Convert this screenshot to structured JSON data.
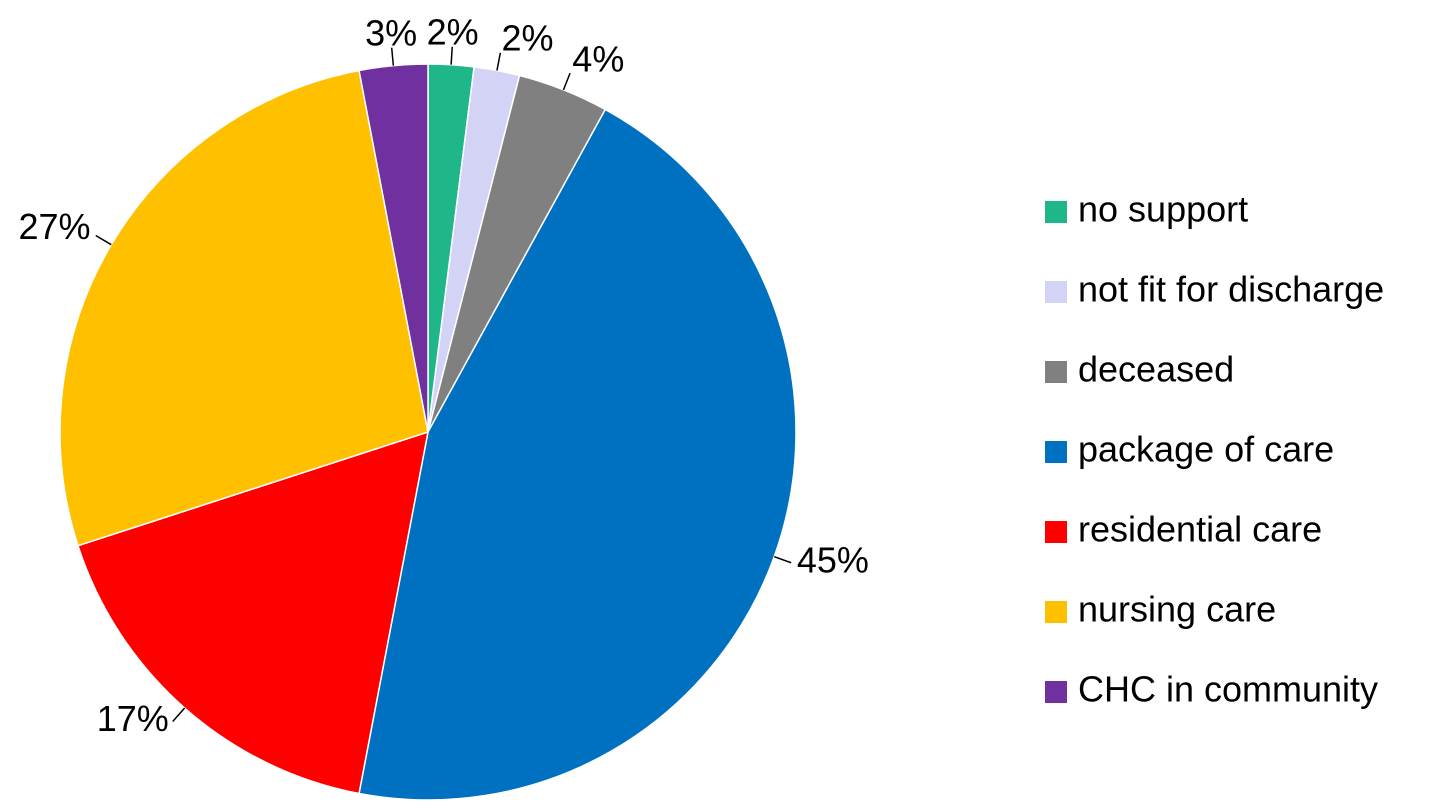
{
  "chart_data": {
    "type": "pie",
    "categories": [
      "no support",
      "not fit for discharge",
      "deceased",
      "package of care",
      "residential care",
      "nursing care",
      "CHC in community"
    ],
    "values": [
      2,
      2,
      4,
      45,
      17,
      27,
      3
    ],
    "value_labels": [
      "2%",
      "2%",
      "4%",
      "45%",
      "17%",
      "27%",
      "3%"
    ],
    "colors": [
      "#1fb789",
      "#d3d3f5",
      "#808080",
      "#0070c0",
      "#ff0000",
      "#ffc000",
      "#7030a0"
    ],
    "legend": "right"
  }
}
